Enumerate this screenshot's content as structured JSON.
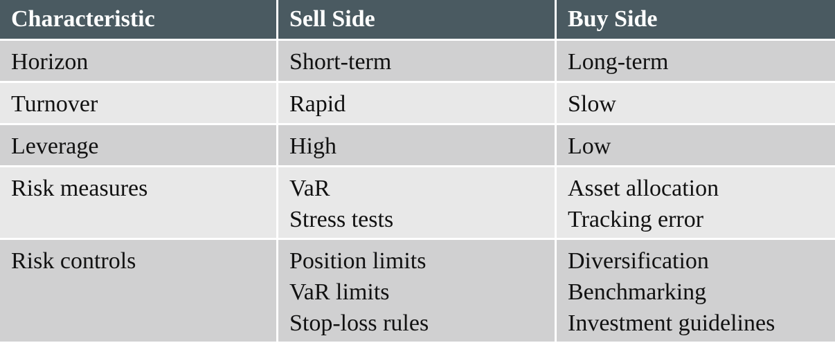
{
  "table": {
    "headers": [
      "Characteristic",
      "Sell Side",
      "Buy Side"
    ],
    "rows": [
      {
        "characteristic": "Horizon",
        "sell": [
          "Short-term"
        ],
        "buy": [
          "Long-term"
        ]
      },
      {
        "characteristic": "Turnover",
        "sell": [
          "Rapid"
        ],
        "buy": [
          "Slow"
        ]
      },
      {
        "characteristic": "Leverage",
        "sell": [
          "High"
        ],
        "buy": [
          "Low"
        ]
      },
      {
        "characteristic": "Risk measures",
        "sell": [
          "VaR",
          "Stress tests"
        ],
        "buy": [
          "Asset allocation",
          "Tracking error"
        ]
      },
      {
        "characteristic": "Risk controls",
        "sell": [
          "Position limits",
          "VaR limits",
          "Stop-loss rules"
        ],
        "buy": [
          "Diversification",
          "Benchmarking",
          "Investment guidelines"
        ]
      }
    ]
  },
  "colors": {
    "header_bg": "#4a5a61",
    "row_dark": "#d0d0d1",
    "row_light": "#e8e8e8"
  }
}
